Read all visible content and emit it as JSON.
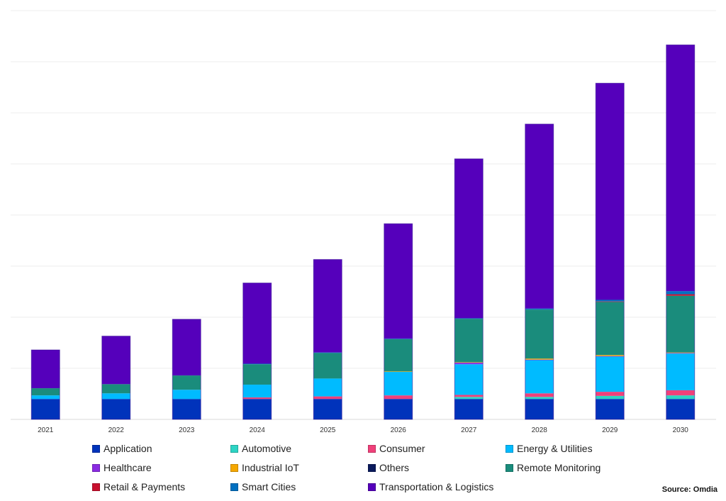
{
  "chart_data": {
    "type": "bar",
    "stacked": true,
    "title": "",
    "xlabel": "",
    "ylabel": "",
    "y_tick_labels_shown": false,
    "ylim": [
      0,
      8
    ],
    "grid": true,
    "legend_placement": "bottom",
    "categories": [
      "2021",
      "2022",
      "2023",
      "2024",
      "2025",
      "2026",
      "2027",
      "2028",
      "2029",
      "2030"
    ],
    "series": [
      {
        "name": "Application",
        "color": "#0033BB",
        "values": [
          0.4,
          0.4,
          0.4,
          0.4,
          0.4,
          0.4,
          0.4,
          0.4,
          0.4,
          0.4
        ]
      },
      {
        "name": "Automotive",
        "color": "#2DD4C4",
        "values": [
          0,
          0,
          0,
          0,
          0,
          0,
          0.04,
          0.04,
          0.06,
          0.07
        ]
      },
      {
        "name": "Consumer",
        "color": "#F0407A",
        "values": [
          0,
          0,
          0,
          0.03,
          0.05,
          0.07,
          0.04,
          0.07,
          0.08,
          0.1
        ]
      },
      {
        "name": "Energy & Utilities",
        "color": "#00BBFF",
        "values": [
          0.07,
          0.11,
          0.18,
          0.25,
          0.35,
          0.46,
          0.6,
          0.65,
          0.69,
          0.72
        ]
      },
      {
        "name": "Healthcare",
        "color": "#8A2BE2",
        "values": [
          0,
          0,
          0,
          0,
          0,
          0,
          0.03,
          0.01,
          0.01,
          0.01
        ]
      },
      {
        "name": "Industrial IoT",
        "color": "#F5A800",
        "values": [
          0,
          0,
          0,
          0,
          0,
          0.01,
          0.01,
          0.02,
          0.02,
          0.01
        ]
      },
      {
        "name": "Others",
        "color": "#0A1A5C",
        "values": [
          0,
          0,
          0,
          0,
          0,
          0,
          0,
          0,
          0,
          0
        ]
      },
      {
        "name": "Remote Monitoring",
        "color": "#1A8C7C",
        "values": [
          0.14,
          0.18,
          0.28,
          0.4,
          0.5,
          0.63,
          0.85,
          0.96,
          1.04,
          1.11
        ]
      },
      {
        "name": "Retail & Payments",
        "color": "#C8102E",
        "values": [
          0,
          0,
          0,
          0,
          0,
          0,
          0,
          0,
          0.01,
          0.03
        ]
      },
      {
        "name": "Smart Cities",
        "color": "#0070C0",
        "values": [
          0,
          0,
          0,
          0.01,
          0.01,
          0.01,
          0.01,
          0.02,
          0.03,
          0.06
        ]
      },
      {
        "name": "Transportation & Logistics",
        "color": "#5500BB",
        "values": [
          0.75,
          0.94,
          1.1,
          1.58,
          1.82,
          2.25,
          3.12,
          3.61,
          4.24,
          4.82
        ]
      }
    ],
    "source": "Source: Omdia"
  }
}
